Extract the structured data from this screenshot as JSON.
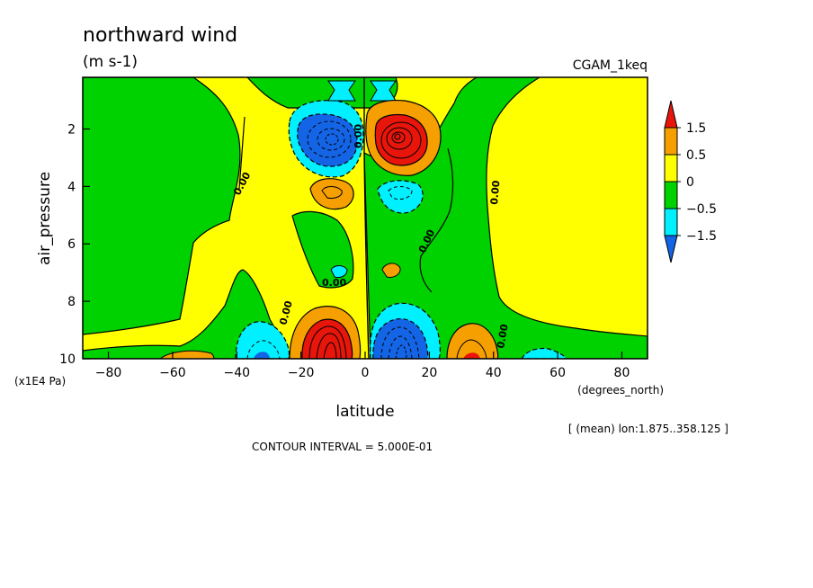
{
  "chart_data": {
    "type": "heatmap",
    "title": "northward wind",
    "units": "(m s-1)",
    "dataset": "CGAM_1keq",
    "xlabel": "latitude",
    "xunits": "(degrees_north)",
    "ylabel": "air_pressure",
    "yunits": "(x1E4 Pa)",
    "xlim": [
      -88,
      88
    ],
    "ylim": [
      10,
      0.2
    ],
    "y_inverted": true,
    "x_ticks": [
      -80,
      -60,
      -40,
      -20,
      0,
      20,
      40,
      60,
      80
    ],
    "y_ticks": [
      2,
      4,
      6,
      8,
      10
    ],
    "mean_note": "[ (mean) lon:1.875..358.125 ]",
    "contour_interval_label": "CONTOUR INTERVAL = 5.000E-01",
    "contour_label": "0.00",
    "legend": {
      "position": "right",
      "levels": [
        "1.5",
        "0.5",
        "0",
        "-0.5",
        "-1.5"
      ],
      "colors": [
        "#e8150b",
        "#f5a000",
        "#ffff00",
        "#00d200",
        "#00f0ff",
        "#1464e6"
      ]
    },
    "fill_colors": {
      "strong_neg": "#1464e6",
      "neg": "#00f0ff",
      "weak_neg": "#00d200",
      "weak_pos": "#ffff00",
      "pos": "#f5a000",
      "strong_pos": "#e8150b"
    },
    "features": [
      {
        "name": "upper negative core",
        "lat": -9,
        "pressure": 2.2,
        "value": -2.5
      },
      {
        "name": "upper positive core",
        "lat": 9,
        "pressure": 2.2,
        "value": 2.5
      },
      {
        "name": "lower positive core",
        "lat": -10,
        "pressure": 9.3,
        "value": 2.5
      },
      {
        "name": "lower negative core",
        "lat": 10,
        "pressure": 9.3,
        "value": -2.5
      },
      {
        "name": "mid positive cell",
        "lat": -10,
        "pressure": 4.0,
        "value": 0.7
      },
      {
        "name": "mid negative cell",
        "lat": 11,
        "pressure": 4.2,
        "value": -0.7
      },
      {
        "name": "lower negative cell",
        "lat": -33,
        "pressure": 9.4,
        "value": -0.9
      },
      {
        "name": "lower positive cell",
        "lat": 33,
        "pressure": 9.4,
        "value": 0.9
      }
    ]
  }
}
